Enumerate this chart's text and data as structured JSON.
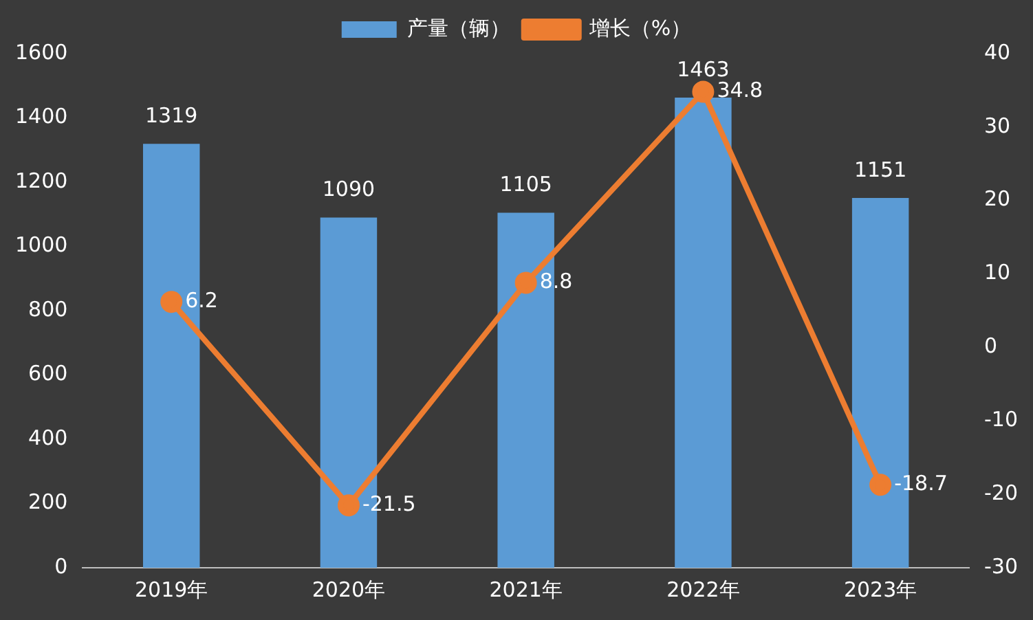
{
  "chart_data": {
    "type": "bar",
    "categories": [
      "2019年",
      "2020年",
      "2021年",
      "2022年",
      "2023年"
    ],
    "series": [
      {
        "name": "产量（辆）",
        "color": "#5b9bd5",
        "values": [
          1319,
          1090,
          1105,
          1463,
          1151
        ]
      },
      {
        "name": "增长（%）",
        "type": "line",
        "axis": "y2",
        "color": "#ed7d31",
        "values": [
          6.2,
          -21.5,
          8.8,
          34.8,
          -18.7
        ]
      }
    ],
    "ylim": [
      0,
      1600
    ],
    "yticks": [
      0,
      200,
      400,
      600,
      800,
      1000,
      1200,
      1400,
      1600
    ],
    "y2lim": [
      -30,
      40
    ],
    "y2ticks": [
      -30,
      -20,
      -10,
      0,
      10,
      20,
      30,
      40
    ],
    "grid": false,
    "legend": "top",
    "marker": "circle",
    "data_labels": true
  }
}
